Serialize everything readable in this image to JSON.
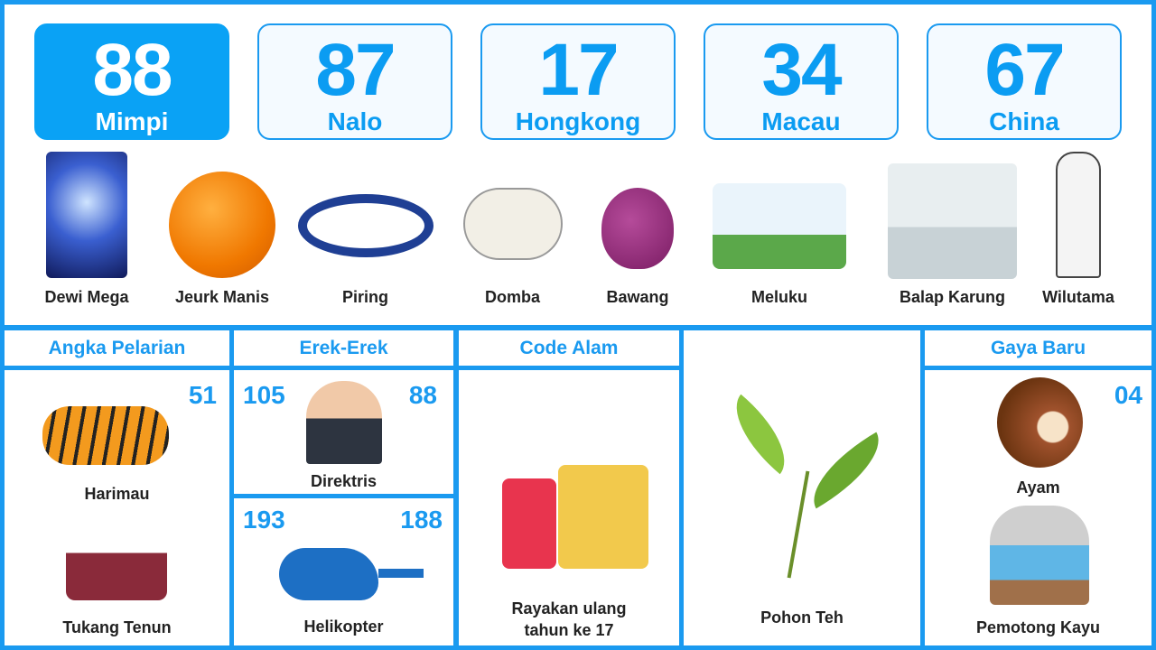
{
  "colors": {
    "accent": "#1a9af0",
    "active_bg": "#0aa2f5"
  },
  "numbers": [
    {
      "value": "88",
      "label": "Mimpi",
      "active": true
    },
    {
      "value": "87",
      "label": "Nalo"
    },
    {
      "value": "17",
      "label": "Hongkong"
    },
    {
      "value": "34",
      "label": "Macau"
    },
    {
      "value": "67",
      "label": "China"
    }
  ],
  "items": [
    {
      "label": "Dewi Mega",
      "icon": "goddess-image"
    },
    {
      "label": "Jeurk Manis",
      "icon": "orange-image"
    },
    {
      "label": "Piring",
      "icon": "plate-image"
    },
    {
      "label": "Domba",
      "icon": "sheep-image"
    },
    {
      "label": "Bawang",
      "icon": "onion-image"
    },
    {
      "label": "Meluku",
      "icon": "plowing-image"
    },
    {
      "label": "Balap Karung",
      "icon": "sack-race-image"
    },
    {
      "label": "Wilutama",
      "icon": "wayang-image"
    }
  ],
  "angka_pelarian": {
    "title": "Angka Pelarian",
    "number": "51",
    "top_label": "Harimau",
    "bottom_label": "Tukang Tenun"
  },
  "erek_erek": {
    "title": "Erek-Erek",
    "top": {
      "left": "105",
      "right": "88",
      "label": "Direktris"
    },
    "bottom": {
      "left": "193",
      "right": "188",
      "label": "Helikopter"
    }
  },
  "code_alam": {
    "title": "Code Alam",
    "label_line1": "Rayakan ulang",
    "label_line2": "tahun ke 17"
  },
  "pohon": {
    "label": "Pohon Teh"
  },
  "gaya_baru": {
    "title": "Gaya Baru",
    "number": "04",
    "top_label": "Ayam",
    "bottom_label": "Pemotong Kayu"
  }
}
